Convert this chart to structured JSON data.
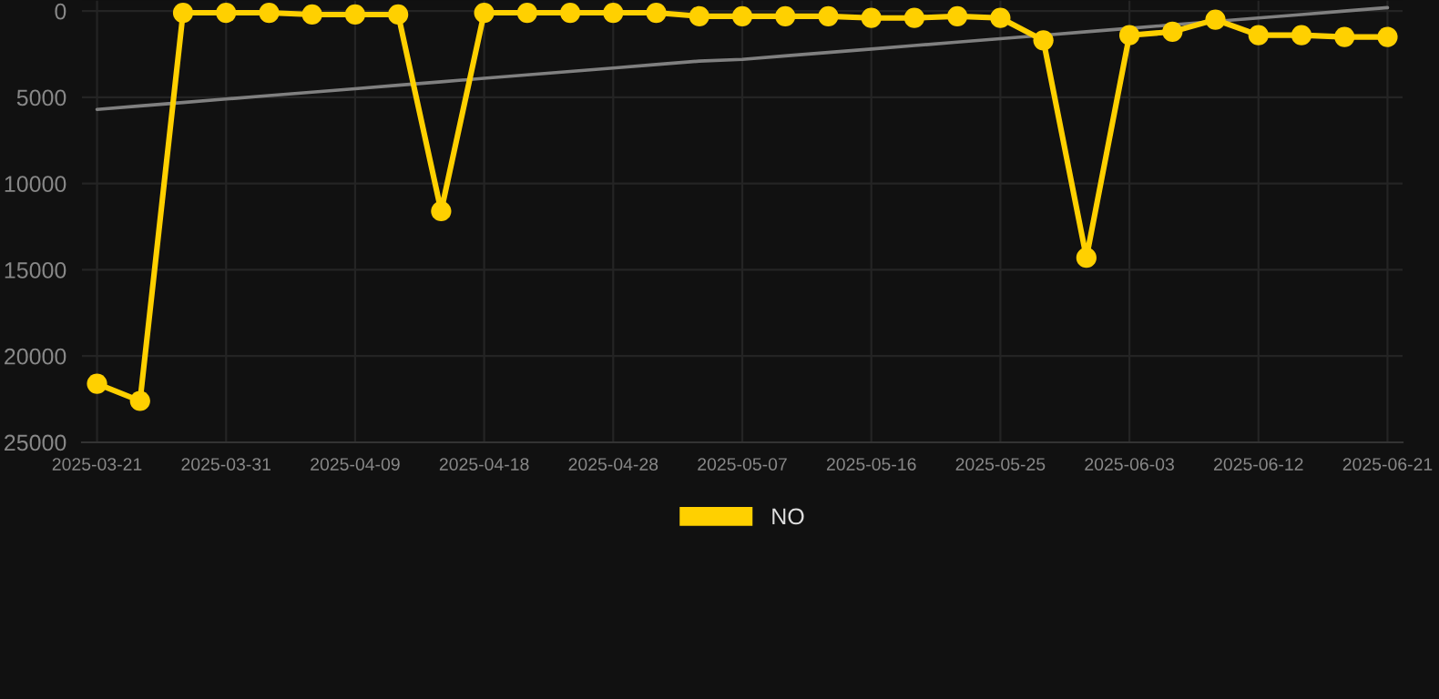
{
  "chart_data": {
    "type": "line",
    "categories": [
      "2025-03-21",
      null,
      null,
      "2025-03-31",
      null,
      null,
      "2025-04-09",
      null,
      null,
      "2025-04-18",
      null,
      null,
      "2025-04-28",
      null,
      null,
      "2025-05-07",
      null,
      null,
      "2025-05-16",
      null,
      null,
      "2025-05-25",
      null,
      null,
      "2025-06-03",
      null,
      null,
      "2025-06-12",
      null,
      null,
      "2025-06-21"
    ],
    "series": [
      {
        "name": "NO",
        "color": "#ffd000",
        "marker": "circle",
        "values": [
          21600,
          22600,
          100,
          100,
          100,
          200,
          200,
          200,
          11600,
          100,
          100,
          100,
          100,
          100,
          300,
          300,
          300,
          300,
          400,
          400,
          300,
          400,
          1700,
          14300,
          1400,
          1200,
          500,
          1400,
          1400,
          1500,
          1500
        ]
      },
      {
        "type": "line",
        "color": "#808080",
        "marker": "none",
        "values": [
          5700,
          5500,
          5300,
          5100,
          4900,
          4700,
          4500,
          4300,
          4100,
          3900,
          3700,
          3500,
          3300,
          3100,
          2900,
          2800,
          2600,
          2400,
          2200,
          2000,
          1800,
          1600,
          1400,
          1200,
          1000,
          800,
          600,
          400,
          200,
          0,
          -200
        ]
      }
    ],
    "ylim": [
      25000,
      -600
    ],
    "yticks": [
      0,
      5000,
      10000,
      15000,
      20000,
      25000
    ],
    "grid": true,
    "legend": "bottom",
    "line_style": "solid"
  }
}
